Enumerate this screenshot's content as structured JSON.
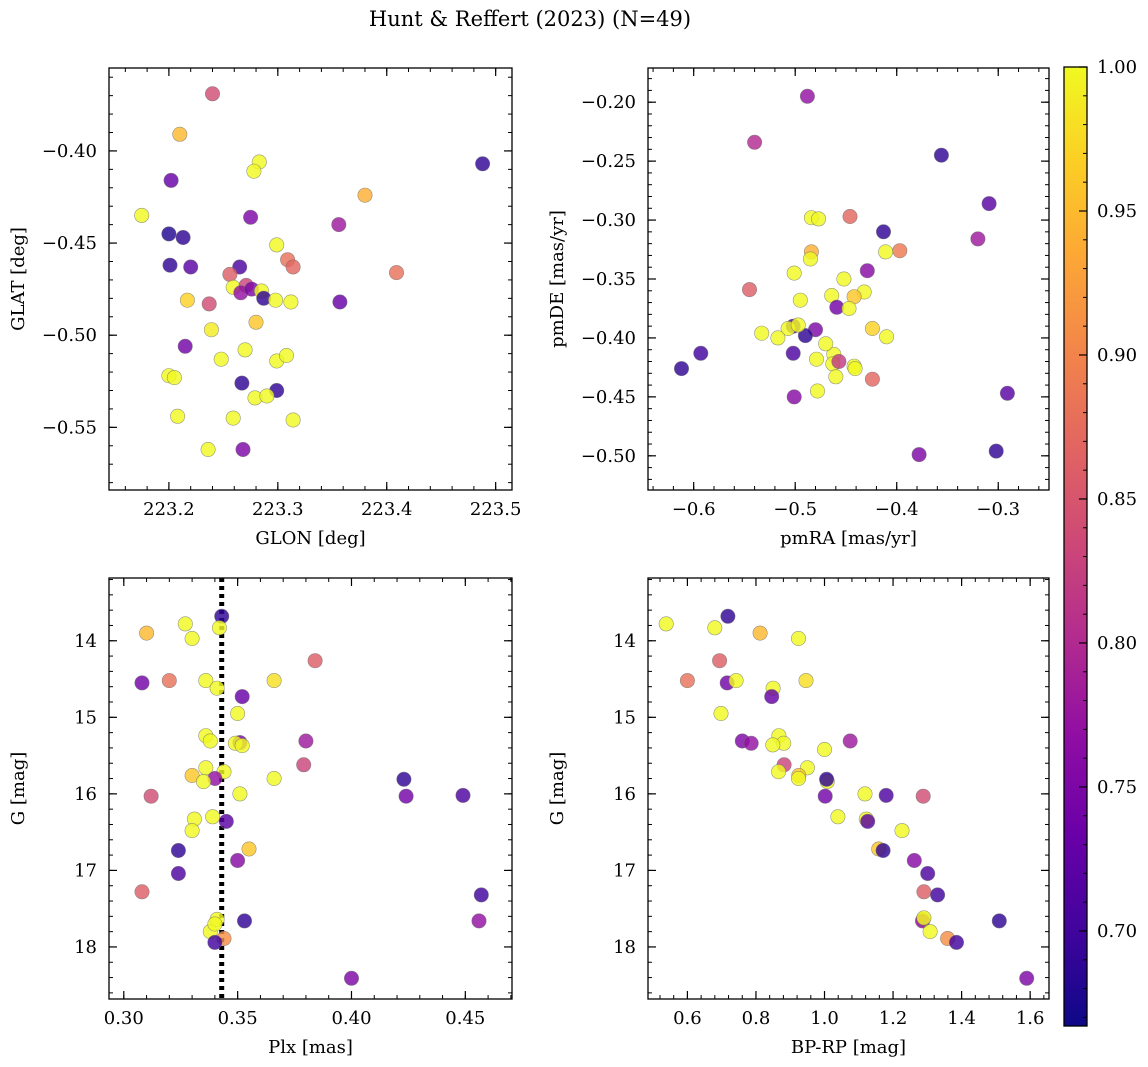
{
  "figure": {
    "title": "Hunt & Reffert (2023) (N=49)"
  },
  "colorbar": {
    "colormap": "plasma",
    "range": [
      0.667,
      1.0
    ],
    "ticks": [
      0.7,
      0.75,
      0.8,
      0.85,
      0.9,
      0.95,
      1.0
    ],
    "tick_labels": [
      "0.70",
      "0.75",
      "0.80",
      "0.85",
      "0.90",
      "0.95",
      "1.00"
    ]
  },
  "chart_data": [
    {
      "type": "scatter",
      "xlabel": "GLON [deg]",
      "ylabel": "GLAT [deg]",
      "xlim": [
        223.145,
        223.515
      ],
      "ylim": [
        -0.584,
        -0.355
      ],
      "xticks": [
        223.2,
        223.3,
        223.4,
        223.5
      ],
      "xtick_labels": [
        "223.2",
        "223.3",
        "223.4",
        "223.5"
      ],
      "yticks": [
        -0.4,
        -0.45,
        -0.5,
        -0.55
      ],
      "ytick_labels": [
        "−0.40",
        "−0.45",
        "−0.50",
        "−0.55"
      ],
      "invert_y": false,
      "points": [
        [
          223.24,
          -0.369,
          0.84
        ],
        [
          223.21,
          -0.391,
          0.95
        ],
        [
          223.488,
          -0.407,
          0.69
        ],
        [
          223.283,
          -0.406,
          1.0
        ],
        [
          223.278,
          -0.411,
          1.0
        ],
        [
          223.202,
          -0.416,
          0.73
        ],
        [
          223.38,
          -0.424,
          0.94
        ],
        [
          223.175,
          -0.435,
          1.0
        ],
        [
          223.275,
          -0.436,
          0.75
        ],
        [
          223.356,
          -0.44,
          0.78
        ],
        [
          223.2,
          -0.445,
          0.68
        ],
        [
          223.213,
          -0.447,
          0.69
        ],
        [
          223.299,
          -0.451,
          1.0
        ],
        [
          223.201,
          -0.462,
          0.69
        ],
        [
          223.22,
          -0.463,
          0.72
        ],
        [
          223.265,
          -0.463,
          0.71
        ],
        [
          223.309,
          -0.459,
          0.88
        ],
        [
          223.314,
          -0.463,
          0.87
        ],
        [
          223.409,
          -0.466,
          0.88
        ],
        [
          223.256,
          -0.467,
          0.86
        ],
        [
          223.259,
          -0.474,
          1.0
        ],
        [
          223.271,
          -0.473,
          0.83
        ],
        [
          223.266,
          -0.477,
          0.77
        ],
        [
          223.276,
          -0.475,
          0.75
        ],
        [
          223.285,
          -0.476,
          1.0
        ],
        [
          223.287,
          -0.48,
          0.69
        ],
        [
          223.298,
          -0.481,
          1.0
        ],
        [
          223.312,
          -0.482,
          1.0
        ],
        [
          223.357,
          -0.482,
          0.73
        ],
        [
          223.217,
          -0.481,
          0.97
        ],
        [
          223.237,
          -0.483,
          0.84
        ],
        [
          223.28,
          -0.493,
          0.96
        ],
        [
          223.239,
          -0.497,
          0.99
        ],
        [
          223.215,
          -0.506,
          0.74
        ],
        [
          223.27,
          -0.508,
          1.0
        ],
        [
          223.248,
          -0.513,
          1.0
        ],
        [
          223.299,
          -0.514,
          1.0
        ],
        [
          223.308,
          -0.511,
          1.0
        ],
        [
          223.2,
          -0.522,
          1.0
        ],
        [
          223.205,
          -0.523,
          1.0
        ],
        [
          223.267,
          -0.526,
          0.69
        ],
        [
          223.299,
          -0.53,
          0.69
        ],
        [
          223.279,
          -0.534,
          1.0
        ],
        [
          223.29,
          -0.533,
          1.0
        ],
        [
          223.208,
          -0.544,
          1.0
        ],
        [
          223.259,
          -0.545,
          1.0
        ],
        [
          223.314,
          -0.546,
          1.0
        ],
        [
          223.236,
          -0.562,
          1.0
        ],
        [
          223.268,
          -0.562,
          0.75
        ]
      ]
    },
    {
      "type": "scatter",
      "xlabel": "pmRA [mas/yr]",
      "ylabel": "pmDE [mas/yr]",
      "xlim": [
        -0.645,
        -0.25
      ],
      "ylim": [
        -0.529,
        -0.171
      ],
      "xticks": [
        -0.6,
        -0.5,
        -0.4,
        -0.3
      ],
      "xtick_labels": [
        "−0.6",
        "−0.5",
        "−0.4",
        "−0.3"
      ],
      "yticks": [
        -0.2,
        -0.25,
        -0.3,
        -0.35,
        -0.4,
        -0.45,
        -0.5
      ],
      "ytick_labels": [
        "−0.20",
        "−0.25",
        "−0.30",
        "−0.35",
        "−0.40",
        "−0.45",
        "−0.50"
      ],
      "invert_y": false,
      "points": [
        [
          -0.488,
          -0.195,
          0.77
        ],
        [
          -0.54,
          -0.234,
          0.8
        ],
        [
          -0.356,
          -0.245,
          0.69
        ],
        [
          -0.309,
          -0.286,
          0.72
        ],
        [
          -0.32,
          -0.316,
          0.78
        ],
        [
          -0.413,
          -0.31,
          0.69
        ],
        [
          -0.484,
          -0.298,
          1.0
        ],
        [
          -0.477,
          -0.299,
          1.0
        ],
        [
          -0.446,
          -0.297,
          0.87
        ],
        [
          -0.397,
          -0.326,
          0.89
        ],
        [
          -0.484,
          -0.327,
          0.94
        ],
        [
          -0.485,
          -0.333,
          1.0
        ],
        [
          -0.411,
          -0.327,
          1.0
        ],
        [
          -0.429,
          -0.343,
          0.76
        ],
        [
          -0.501,
          -0.345,
          1.0
        ],
        [
          -0.452,
          -0.35,
          1.0
        ],
        [
          -0.545,
          -0.359,
          0.86
        ],
        [
          -0.432,
          -0.361,
          1.0
        ],
        [
          -0.442,
          -0.365,
          0.96
        ],
        [
          -0.464,
          -0.364,
          1.0
        ],
        [
          -0.495,
          -0.368,
          1.0
        ],
        [
          -0.459,
          -0.374,
          0.74
        ],
        [
          -0.447,
          -0.375,
          1.0
        ],
        [
          -0.502,
          -0.39,
          0.71
        ],
        [
          -0.48,
          -0.393,
          0.75
        ],
        [
          -0.424,
          -0.392,
          0.97
        ],
        [
          -0.49,
          -0.398,
          0.69
        ],
        [
          -0.41,
          -0.399,
          1.0
        ],
        [
          -0.533,
          -0.396,
          1.0
        ],
        [
          -0.507,
          -0.392,
          1.0
        ],
        [
          -0.517,
          -0.4,
          1.0
        ],
        [
          -0.462,
          -0.414,
          1.0
        ],
        [
          -0.463,
          -0.422,
          1.0
        ],
        [
          -0.457,
          -0.42,
          0.82
        ],
        [
          -0.479,
          -0.418,
          1.0
        ],
        [
          -0.442,
          -0.424,
          1.0
        ],
        [
          -0.441,
          -0.426,
          1.0
        ],
        [
          -0.593,
          -0.413,
          0.7
        ],
        [
          -0.502,
          -0.413,
          0.71
        ],
        [
          -0.612,
          -0.426,
          0.69
        ],
        [
          -0.46,
          -0.433,
          1.0
        ],
        [
          -0.424,
          -0.435,
          0.87
        ],
        [
          -0.478,
          -0.445,
          1.0
        ],
        [
          -0.501,
          -0.45,
          0.76
        ],
        [
          -0.291,
          -0.447,
          0.72
        ],
        [
          -0.378,
          -0.499,
          0.75
        ],
        [
          -0.302,
          -0.496,
          0.69
        ],
        [
          -0.497,
          -0.389,
          1.0
        ],
        [
          -0.47,
          -0.405,
          1.0
        ]
      ]
    },
    {
      "type": "scatter",
      "xlabel": "Plx [mas]",
      "ylabel": "G [mag]",
      "xlim": [
        0.2935,
        0.4705
      ],
      "ylim": [
        13.18,
        18.68
      ],
      "xticks": [
        0.3,
        0.35,
        0.4,
        0.45
      ],
      "xtick_labels": [
        "0.30",
        "0.35",
        "0.40",
        "0.45"
      ],
      "yticks": [
        14,
        15,
        16,
        17,
        18
      ],
      "ytick_labels": [
        "14",
        "15",
        "16",
        "17",
        "18"
      ],
      "invert_y": true,
      "vline": {
        "x": 0.343,
        "style": "dotted",
        "color": "#000000"
      },
      "points": [
        [
          0.343,
          13.68,
          0.69
        ],
        [
          0.327,
          13.78,
          1.0
        ],
        [
          0.342,
          13.83,
          1.0
        ],
        [
          0.31,
          13.9,
          0.95
        ],
        [
          0.33,
          13.97,
          1.0
        ],
        [
          0.384,
          14.26,
          0.86
        ],
        [
          0.32,
          14.52,
          0.88
        ],
        [
          0.308,
          14.55,
          0.74
        ],
        [
          0.336,
          14.52,
          1.0
        ],
        [
          0.366,
          14.52,
          0.98
        ],
        [
          0.341,
          14.62,
          1.0
        ],
        [
          0.352,
          14.73,
          0.73
        ],
        [
          0.35,
          14.95,
          1.0
        ],
        [
          0.336,
          15.24,
          1.0
        ],
        [
          0.338,
          15.31,
          1.0
        ],
        [
          0.38,
          15.31,
          0.78
        ],
        [
          0.351,
          15.33,
          0.75
        ],
        [
          0.349,
          15.34,
          1.0
        ],
        [
          0.352,
          15.37,
          1.0
        ],
        [
          0.379,
          15.62,
          0.83
        ],
        [
          0.336,
          15.66,
          1.0
        ],
        [
          0.344,
          15.71,
          1.0
        ],
        [
          0.33,
          15.76,
          0.96
        ],
        [
          0.34,
          15.8,
          0.77
        ],
        [
          0.366,
          15.8,
          1.0
        ],
        [
          0.335,
          15.84,
          1.0
        ],
        [
          0.423,
          15.81,
          0.69
        ],
        [
          0.312,
          16.03,
          0.84
        ],
        [
          0.351,
          16.0,
          1.0
        ],
        [
          0.424,
          16.03,
          0.74
        ],
        [
          0.449,
          16.02,
          0.71
        ],
        [
          0.339,
          16.3,
          1.0
        ],
        [
          0.331,
          16.33,
          1.0
        ],
        [
          0.345,
          16.36,
          0.72
        ],
        [
          0.33,
          16.48,
          1.0
        ],
        [
          0.355,
          16.72,
          0.96
        ],
        [
          0.324,
          16.74,
          0.69
        ],
        [
          0.35,
          16.87,
          0.76
        ],
        [
          0.324,
          17.04,
          0.71
        ],
        [
          0.308,
          17.28,
          0.86
        ],
        [
          0.457,
          17.32,
          0.7
        ],
        [
          0.341,
          17.64,
          1.0
        ],
        [
          0.353,
          17.66,
          0.69
        ],
        [
          0.456,
          17.66,
          0.77
        ],
        [
          0.338,
          17.8,
          1.0
        ],
        [
          0.344,
          17.89,
          0.91
        ],
        [
          0.34,
          17.94,
          0.7
        ],
        [
          0.4,
          18.41,
          0.75
        ],
        [
          0.34,
          17.7,
          1.0
        ]
      ]
    },
    {
      "type": "scatter",
      "xlabel": "BP-RP [mag]",
      "ylabel": "G [mag]",
      "xlim": [
        0.485,
        1.655
      ],
      "ylim": [
        13.18,
        18.68
      ],
      "xticks": [
        0.6,
        0.8,
        1.0,
        1.2,
        1.4,
        1.6
      ],
      "xtick_labels": [
        "0.6",
        "0.8",
        "1.0",
        "1.2",
        "1.4",
        "1.6"
      ],
      "yticks": [
        14,
        15,
        16,
        17,
        18
      ],
      "ytick_labels": [
        "14",
        "15",
        "16",
        "17",
        "18"
      ],
      "invert_y": true,
      "points": [
        [
          0.718,
          13.68,
          0.69
        ],
        [
          0.538,
          13.78,
          1.0
        ],
        [
          0.68,
          13.83,
          1.0
        ],
        [
          0.812,
          13.9,
          0.95
        ],
        [
          0.924,
          13.97,
          1.0
        ],
        [
          0.694,
          14.26,
          0.86
        ],
        [
          0.6,
          14.52,
          0.88
        ],
        [
          0.716,
          14.55,
          0.74
        ],
        [
          0.742,
          14.52,
          1.0
        ],
        [
          0.946,
          14.52,
          0.98
        ],
        [
          0.85,
          14.62,
          1.0
        ],
        [
          0.846,
          14.73,
          0.73
        ],
        [
          0.698,
          14.95,
          1.0
        ],
        [
          0.867,
          15.24,
          1.0
        ],
        [
          0.881,
          15.34,
          1.0
        ],
        [
          1.075,
          15.31,
          0.78
        ],
        [
          0.76,
          15.31,
          0.75
        ],
        [
          0.849,
          15.36,
          1.0
        ],
        [
          1.0,
          15.42,
          1.0
        ],
        [
          0.882,
          15.62,
          0.83
        ],
        [
          0.95,
          15.66,
          1.0
        ],
        [
          0.866,
          15.71,
          1.0
        ],
        [
          0.925,
          15.76,
          0.96
        ],
        [
          0.786,
          15.34,
          0.77
        ],
        [
          0.924,
          15.8,
          1.0
        ],
        [
          1.008,
          15.84,
          1.0
        ],
        [
          1.006,
          15.81,
          0.69
        ],
        [
          1.288,
          16.03,
          0.84
        ],
        [
          1.118,
          16.0,
          1.0
        ],
        [
          1.002,
          16.03,
          0.74
        ],
        [
          1.18,
          16.02,
          0.71
        ],
        [
          1.039,
          16.3,
          1.0
        ],
        [
          1.122,
          16.33,
          1.0
        ],
        [
          1.126,
          16.36,
          0.72
        ],
        [
          1.226,
          16.48,
          1.0
        ],
        [
          1.158,
          16.72,
          0.96
        ],
        [
          1.171,
          16.74,
          0.69
        ],
        [
          1.262,
          16.87,
          0.76
        ],
        [
          1.301,
          17.04,
          0.71
        ],
        [
          1.29,
          17.28,
          0.86
        ],
        [
          1.33,
          17.32,
          0.7
        ],
        [
          1.288,
          17.64,
          1.0
        ],
        [
          1.51,
          17.66,
          0.69
        ],
        [
          1.286,
          17.66,
          0.77
        ],
        [
          1.308,
          17.8,
          1.0
        ],
        [
          1.359,
          17.89,
          0.91
        ],
        [
          1.385,
          17.94,
          0.7
        ],
        [
          1.59,
          18.41,
          0.75
        ],
        [
          1.29,
          17.62,
          1.0
        ]
      ]
    }
  ]
}
